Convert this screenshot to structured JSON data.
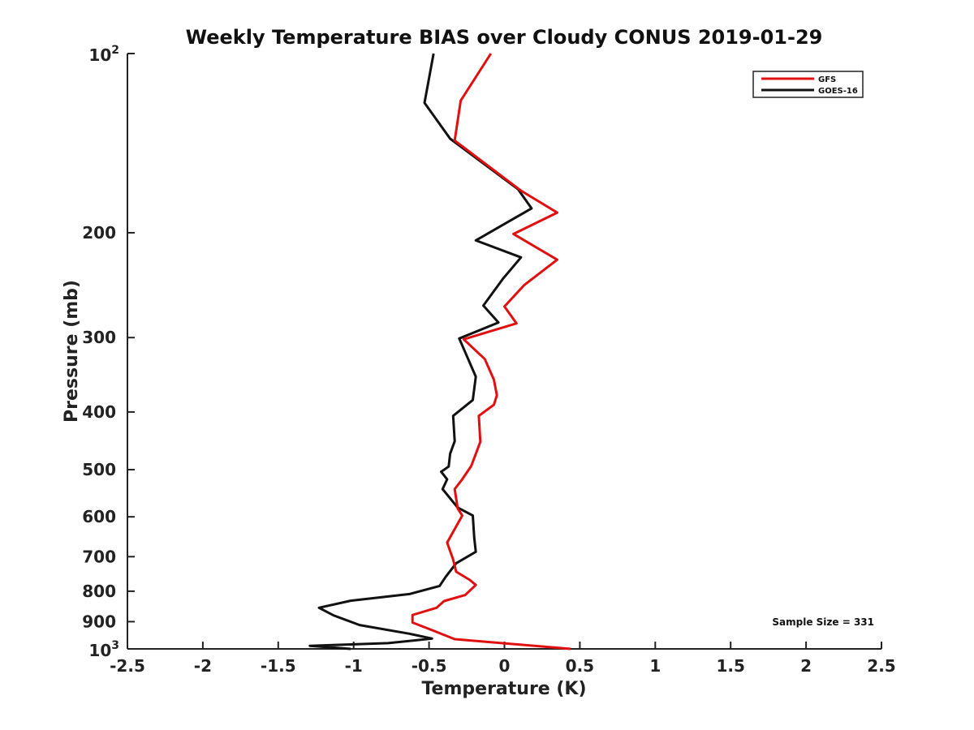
{
  "chart_data": {
    "type": "line",
    "title": "Weekly Temperature BIAS over Cloudy CONUS 2019-01-29",
    "xlabel": "Temperature (K)",
    "ylabel": "Pressure (mb)",
    "xlim": [
      -2.5,
      2.5
    ],
    "ylim": [
      1000,
      100
    ],
    "y_scale": "log",
    "y_reversed": true,
    "x_ticks": [
      -2.5,
      -2,
      -1.5,
      -1,
      -0.5,
      0,
      0.5,
      1,
      1.5,
      2,
      2.5
    ],
    "x_tick_labels": [
      "-2.5",
      "-2",
      "-1.5",
      "-1",
      "-0.5",
      "0",
      "0.5",
      "1",
      "1.5",
      "2",
      "2.5"
    ],
    "y_ticks": [
      {
        "value": 100,
        "base": "10",
        "exp": "2"
      },
      {
        "value": 200,
        "label": "200"
      },
      {
        "value": 300,
        "label": "300"
      },
      {
        "value": 400,
        "label": "400"
      },
      {
        "value": 500,
        "label": "500"
      },
      {
        "value": 600,
        "label": "600"
      },
      {
        "value": 700,
        "label": "700"
      },
      {
        "value": 800,
        "label": "800"
      },
      {
        "value": 900,
        "label": "900"
      },
      {
        "value": 1000,
        "base": "10",
        "exp": "3"
      }
    ],
    "grid": false,
    "legend_position": "top-right",
    "annotation": "Sample Size = 331",
    "series": [
      {
        "name": "GFS",
        "color": "#e01010",
        "points": [
          [
            -0.09,
            100
          ],
          [
            -0.29,
            120
          ],
          [
            -0.33,
            140
          ],
          [
            0.11,
            170
          ],
          [
            0.35,
            185
          ],
          [
            0.06,
            201
          ],
          [
            0.35,
            222
          ],
          [
            0.13,
            245
          ],
          [
            0.0,
            266
          ],
          [
            0.08,
            284
          ],
          [
            -0.27,
            302
          ],
          [
            -0.13,
            326
          ],
          [
            -0.07,
            353
          ],
          [
            -0.05,
            375
          ],
          [
            -0.07,
            389
          ],
          [
            -0.17,
            406
          ],
          [
            -0.16,
            449
          ],
          [
            -0.22,
            493
          ],
          [
            -0.28,
            519
          ],
          [
            -0.33,
            539
          ],
          [
            -0.31,
            581
          ],
          [
            -0.28,
            597
          ],
          [
            -0.38,
            663
          ],
          [
            -0.34,
            708
          ],
          [
            -0.32,
            742
          ],
          [
            -0.23,
            766
          ],
          [
            -0.19,
            781
          ],
          [
            -0.26,
            812
          ],
          [
            -0.4,
            831
          ],
          [
            -0.45,
            853
          ],
          [
            -0.61,
            877
          ],
          [
            -0.61,
            903
          ],
          [
            -0.47,
            932
          ],
          [
            -0.33,
            963
          ],
          [
            0.44,
            1000
          ]
        ]
      },
      {
        "name": "GOES-16",
        "color": "#111111",
        "points": [
          [
            -0.47,
            100
          ],
          [
            -0.53,
            121
          ],
          [
            -0.36,
            139
          ],
          [
            0.09,
            169
          ],
          [
            0.18,
            182
          ],
          [
            -0.19,
            206
          ],
          [
            0.11,
            220
          ],
          [
            -0.01,
            239
          ],
          [
            -0.14,
            265
          ],
          [
            -0.04,
            283
          ],
          [
            -0.3,
            301
          ],
          [
            -0.19,
            349
          ],
          [
            -0.21,
            382
          ],
          [
            -0.34,
            406
          ],
          [
            -0.33,
            448
          ],
          [
            -0.36,
            470
          ],
          [
            -0.37,
            494
          ],
          [
            -0.42,
            504
          ],
          [
            -0.38,
            519
          ],
          [
            -0.41,
            539
          ],
          [
            -0.31,
            579
          ],
          [
            -0.21,
            597
          ],
          [
            -0.2,
            651
          ],
          [
            -0.19,
            687
          ],
          [
            -0.32,
            718
          ],
          [
            -0.39,
            757
          ],
          [
            -0.43,
            784
          ],
          [
            -0.63,
            809
          ],
          [
            -1.02,
            830
          ],
          [
            -1.23,
            853
          ],
          [
            -1.13,
            879
          ],
          [
            -0.96,
            912
          ],
          [
            -0.63,
            943
          ],
          [
            -0.48,
            961
          ],
          [
            -0.77,
            978
          ],
          [
            -1.29,
            988
          ],
          [
            -1.02,
            1000
          ]
        ]
      }
    ]
  }
}
